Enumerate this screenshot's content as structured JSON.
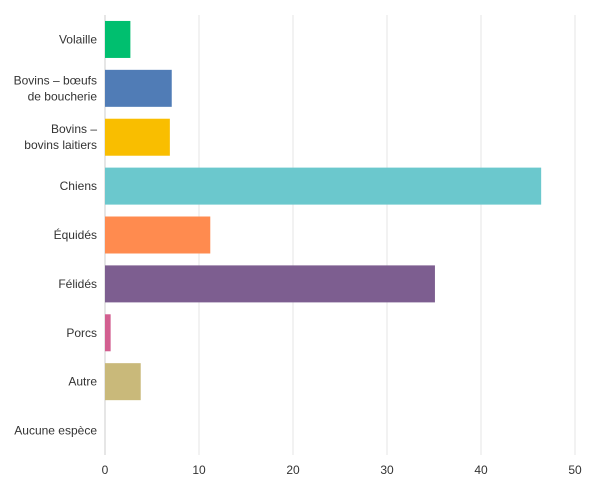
{
  "chart_data": {
    "type": "bar",
    "orientation": "horizontal",
    "categories": [
      [
        "Volaille"
      ],
      [
        "Bovins – bœufs",
        "de boucherie"
      ],
      [
        "Bovins –",
        "bovins laitiers"
      ],
      [
        "Chiens"
      ],
      [
        "Équidés"
      ],
      [
        "Félidés"
      ],
      [
        "Porcs"
      ],
      [
        "Autre"
      ],
      [
        "Aucune espèce"
      ]
    ],
    "values": [
      2.7,
      7.1,
      6.9,
      46.4,
      11.2,
      35.1,
      0.6,
      3.8,
      0
    ],
    "colors": [
      "#00bf6f",
      "#507cb6",
      "#f9be00",
      "#6bc8cd",
      "#ff8b4f",
      "#7d5e90",
      "#d25f90",
      "#c9b97a",
      "#cccccc"
    ],
    "title": "",
    "xlabel": "",
    "ylabel": "",
    "xlim": [
      0,
      50
    ],
    "xticks": [
      0,
      10,
      20,
      30,
      40,
      50
    ],
    "grid": true,
    "legend": "none"
  }
}
